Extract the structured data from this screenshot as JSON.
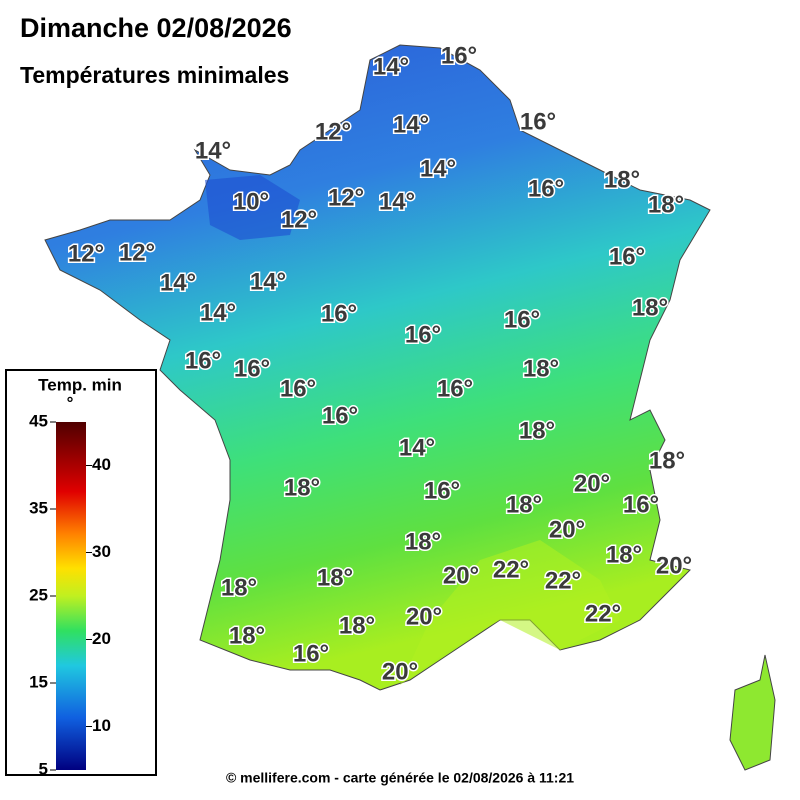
{
  "header": {
    "title": "Dimanche 02/08/2026",
    "subtitle": "Températures minimales"
  },
  "labels": [
    "16°",
    "14°",
    "12°",
    "14°",
    "16°",
    "14°",
    "14°",
    "16°",
    "18°",
    "18°",
    "10°",
    "12°",
    "12°",
    "14°",
    "12°",
    "12°",
    "16°",
    "14°",
    "14°",
    "14°",
    "16°",
    "16°",
    "18°",
    "16°",
    "16°",
    "16°",
    "18°",
    "16°",
    "16°",
    "16°",
    "18°",
    "18°",
    "14°",
    "20°",
    "18°",
    "16°",
    "18°",
    "16°",
    "20°",
    "18°",
    "18°",
    "20°",
    "20°",
    "22°",
    "22°",
    "18°",
    "18°",
    "22°",
    "20°",
    "18°",
    "18°",
    "16°",
    "20°"
  ],
  "legend": {
    "title": "Temp. min",
    "unit": "°",
    "left_ticks": [
      45,
      35,
      25,
      15,
      5
    ],
    "right_ticks": [
      40,
      30,
      20,
      10
    ]
  },
  "footer": "© mellifere.com - carte générée le 02/08/2026 à 11:21"
}
